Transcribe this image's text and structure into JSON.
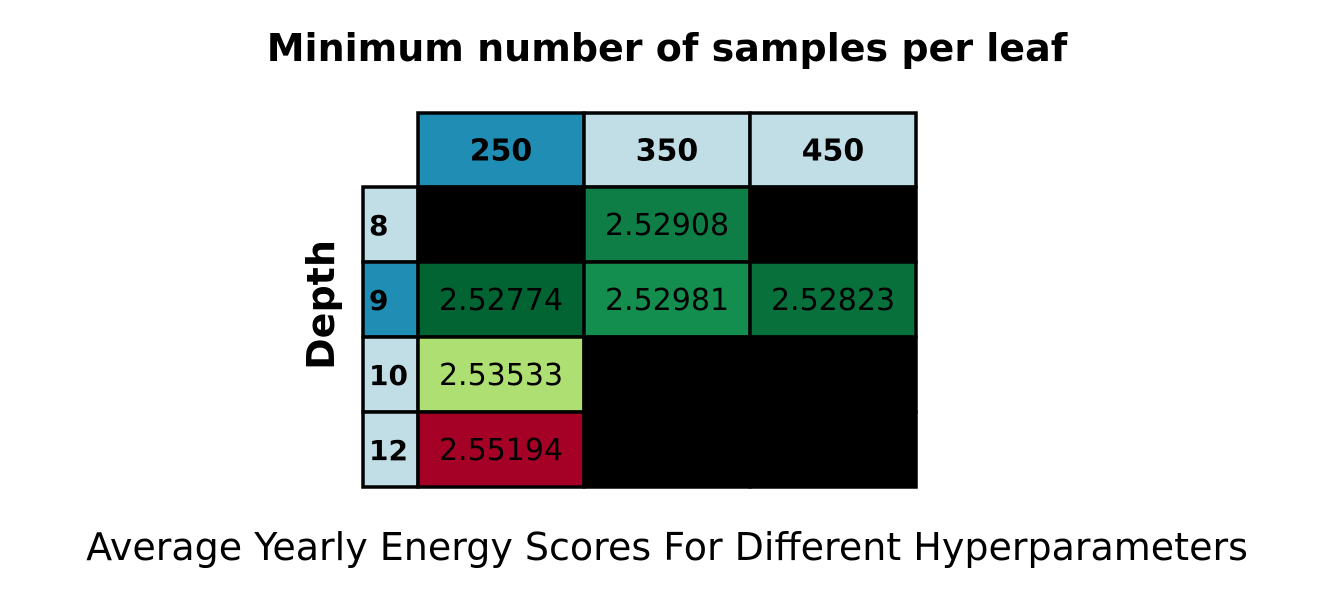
{
  "chart_data": {
    "type": "table",
    "title": "Minimum number of samples per leaf",
    "ylabel": "Depth",
    "xlabel": "Average Yearly Energy Scores For Different Hyperparameters",
    "columns": [
      "250",
      "350",
      "450"
    ],
    "rows": [
      "8",
      "9",
      "10",
      "12"
    ],
    "values": [
      [
        null,
        2.52908,
        null
      ],
      [
        2.52774,
        2.52981,
        2.52823
      ],
      [
        2.53533,
        null,
        null
      ],
      [
        2.55194,
        null,
        null
      ]
    ],
    "value_labels": [
      [
        "",
        "2.52908",
        ""
      ],
      [
        "2.52774",
        "2.52981",
        "2.52823"
      ],
      [
        "2.53533",
        "",
        ""
      ],
      [
        "2.55194",
        "",
        ""
      ]
    ],
    "cell_colors": [
      [
        "#000000",
        "#0f7d46",
        "#000000"
      ],
      [
        "#036433",
        "#148e4f",
        "#07703b"
      ],
      [
        "#aedf72",
        "#000000",
        "#000000"
      ],
      [
        "#a50026",
        "#000000",
        "#000000"
      ]
    ],
    "header_colors": {
      "columns": [
        "#1f8db4",
        "#c1dde6",
        "#c1dde6"
      ],
      "rows": [
        "#c1dde6",
        "#1f8db4",
        "#c1dde6",
        "#c1dde6"
      ]
    },
    "missing_color": "#000000",
    "colormap": "RdYlGn_r"
  }
}
